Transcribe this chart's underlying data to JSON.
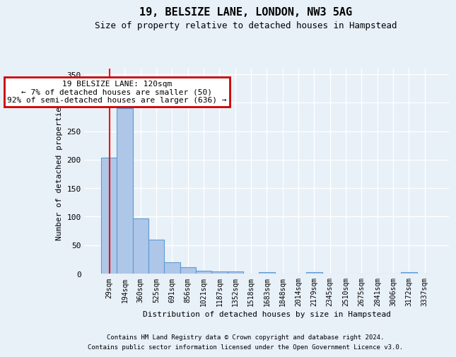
{
  "title": "19, BELSIZE LANE, LONDON, NW3 5AG",
  "subtitle": "Size of property relative to detached houses in Hampstead",
  "xlabel": "Distribution of detached houses by size in Hampstead",
  "ylabel": "Number of detached properties",
  "categories": [
    "29sqm",
    "194sqm",
    "360sqm",
    "525sqm",
    "691sqm",
    "856sqm",
    "1021sqm",
    "1187sqm",
    "1352sqm",
    "1518sqm",
    "1683sqm",
    "1848sqm",
    "2014sqm",
    "2179sqm",
    "2345sqm",
    "2510sqm",
    "2675sqm",
    "2841sqm",
    "3006sqm",
    "3172sqm",
    "3337sqm"
  ],
  "values": [
    204,
    291,
    97,
    60,
    20,
    11,
    5,
    4,
    4,
    0,
    3,
    0,
    0,
    3,
    0,
    0,
    0,
    0,
    0,
    3,
    0
  ],
  "bar_color": "#aec6e8",
  "bar_edge_color": "#5b9bd5",
  "background_color": "#e8f0f8",
  "grid_color": "#ffffff",
  "annotation_text": "19 BELSIZE LANE: 120sqm\n← 7% of detached houses are smaller (50)\n92% of semi-detached houses are larger (636) →",
  "annotation_box_color": "#ffffff",
  "annotation_box_edge": "#cc0000",
  "ylim": [
    0,
    360
  ],
  "yticks": [
    0,
    50,
    100,
    150,
    200,
    250,
    300,
    350
  ],
  "footer1": "Contains HM Land Registry data © Crown copyright and database right 2024.",
  "footer2": "Contains public sector information licensed under the Open Government Licence v3.0."
}
